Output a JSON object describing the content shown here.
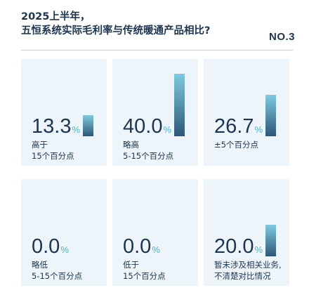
{
  "header": {
    "title_line1": "2025上半年，",
    "title_line2": "五恒系统实际毛利率与传统暖通产品相比?",
    "tag": "NO.3"
  },
  "chart_data": {
    "type": "bar",
    "unit": "%",
    "categories": [
      [
        "高于",
        "15个百分点"
      ],
      [
        "略高",
        "5-15个百分点"
      ],
      [
        "±5个百分点"
      ],
      [
        "略低",
        "5-15个百分点"
      ],
      [
        "低于",
        "15个百分点"
      ],
      [
        "暂未涉及相关业务,",
        "不清楚对比情况"
      ]
    ],
    "values": [
      "13.3",
      "40.0",
      "26.7",
      "0.0",
      "0.0",
      "20.0"
    ],
    "ylim": [
      0,
      40
    ]
  },
  "colors": {
    "bar_top": "#7ecbe1",
    "bar_bottom": "#2e5678",
    "card_bg": "#edf4fa",
    "percent_sign": "#4cb3d0",
    "text": "#1c3553"
  }
}
